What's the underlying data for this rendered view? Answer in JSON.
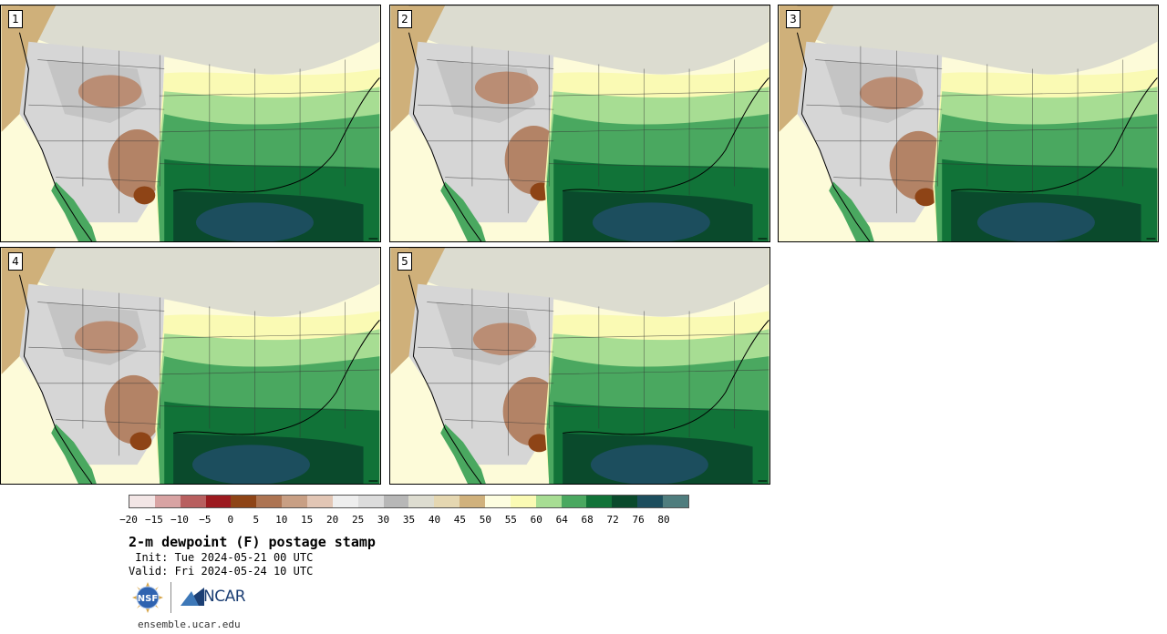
{
  "panels": [
    {
      "label": "1"
    },
    {
      "label": "2"
    },
    {
      "label": "3"
    },
    {
      "label": "4"
    },
    {
      "label": "5"
    }
  ],
  "colorbar": {
    "colors": [
      "#f3e6e6",
      "#d8a3a3",
      "#b85f5f",
      "#9c1a1f",
      "#8e4416",
      "#ad7452",
      "#c89f84",
      "#e2c6b5",
      "#eeeeee",
      "#dcdcdc",
      "#b7b7b7",
      "#dddcd0",
      "#e5d7b1",
      "#d0b17c",
      "#fdfde0",
      "#fafab4",
      "#a7dd93",
      "#4aa860",
      "#117338",
      "#0a4a2c",
      "#1c4e5e",
      "#4f7d7e"
    ],
    "tick_labels": [
      "−20",
      "−15",
      "−10",
      "−5",
      "0",
      "5",
      "10",
      "15",
      "20",
      "25",
      "30",
      "35",
      "40",
      "45",
      "50",
      "55",
      "60",
      "64",
      "68",
      "72",
      "76",
      "80"
    ]
  },
  "title": "2-m dewpoint (F) postage stamp",
  "init_text": " Init: Tue 2024-05-21 00 UTC",
  "valid_text": "Valid: Fri 2024-05-24 10 UTC",
  "logos": {
    "nsf_text": "NSF",
    "ncar_text": "NCAR",
    "nsf_icon": "nsf-globe-icon",
    "ncar_icon": "ncar-wedge-icon"
  },
  "site_url": "ensemble.ucar.edu"
}
